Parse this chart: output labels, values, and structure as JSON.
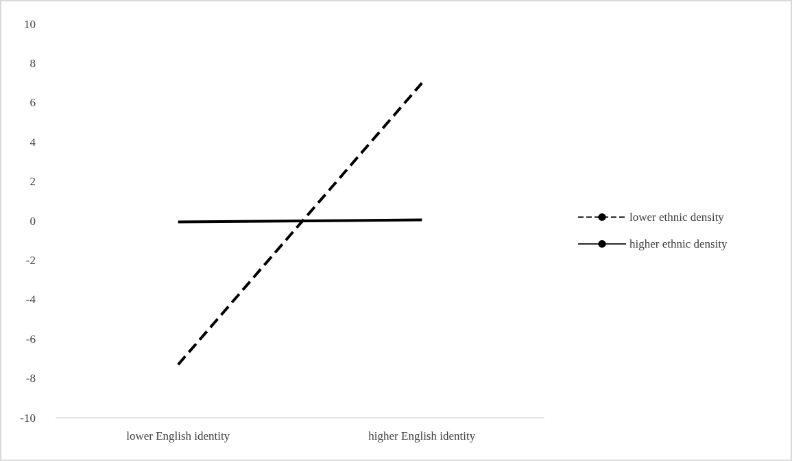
{
  "chart_data": {
    "type": "line",
    "categories": [
      "lower English identity",
      "higher English identity"
    ],
    "series": [
      {
        "name": "lower ethnic density",
        "color": "#000000",
        "line_style": "dashed",
        "values": [
          -7.3,
          7.0
        ]
      },
      {
        "name": "higher ethnic density",
        "color": "#000000",
        "line_style": "solid",
        "values": [
          -0.05,
          0.05
        ]
      }
    ],
    "ylim": [
      -10,
      10
    ],
    "yticks": [
      -10,
      -8,
      -6,
      -4,
      -2,
      0,
      2,
      4,
      6,
      8,
      10
    ],
    "grid": false,
    "legend": "right",
    "marker": "none"
  }
}
